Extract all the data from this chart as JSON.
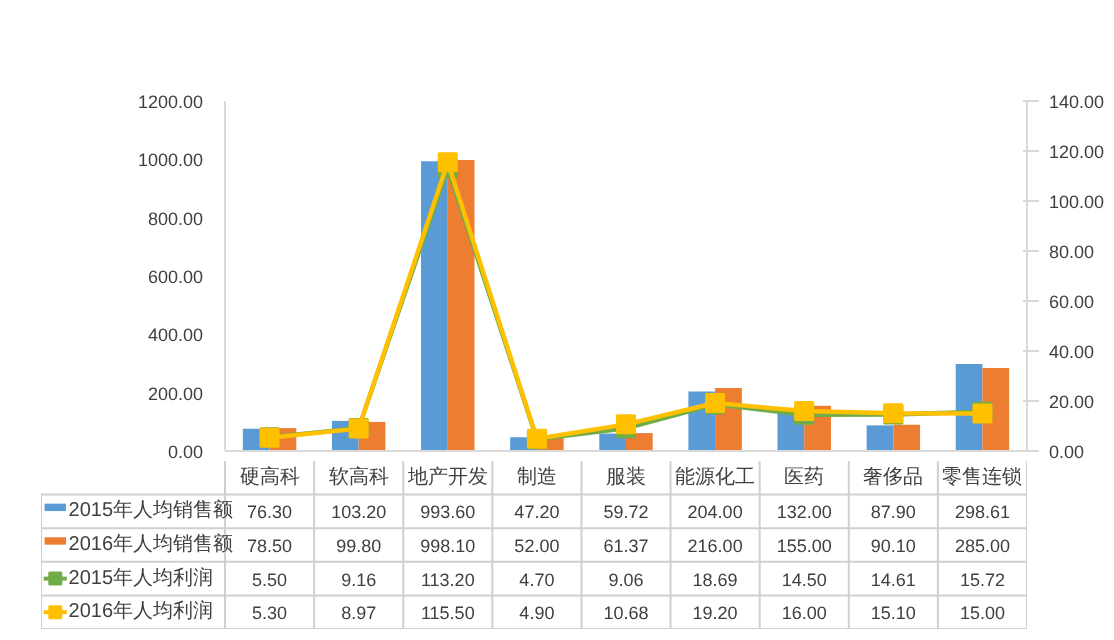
{
  "chart_data": {
    "type": "bar",
    "categories": [
      "硬高科",
      "软高科",
      "地产开发",
      "制造",
      "服装",
      "能源化工",
      "医药",
      "奢侈品",
      "零售连锁"
    ],
    "series": [
      {
        "name": "2015年人均销售额",
        "color": "#5b9bd5",
        "values": [
          76.3,
          103.2,
          993.6,
          47.2,
          59.72,
          204.0,
          132.0,
          87.9,
          298.61
        ],
        "value_labels": [
          "76.30",
          "103.20",
          "993.60",
          "47.20",
          "59.72",
          "204.00",
          "132.00",
          "87.90",
          "298.61"
        ]
      },
      {
        "name": "2016年人均销售额",
        "color": "#ed7d31",
        "values": [
          78.5,
          99.8,
          998.1,
          52.0,
          61.37,
          216.0,
          155.0,
          90.1,
          285.0
        ],
        "value_labels": [
          "78.50",
          "99.80",
          "998.10",
          "52.00",
          "61.37",
          "216.00",
          "155.00",
          "90.10",
          "285.00"
        ]
      },
      {
        "name": "2015年人均利润",
        "type": "line",
        "axis": "y2",
        "color": "#70ad47",
        "values": [
          5.5,
          9.16,
          113.2,
          4.7,
          9.06,
          18.69,
          14.5,
          14.61,
          15.72
        ],
        "value_labels": [
          "5.50",
          "9.16",
          "113.20",
          "4.70",
          "9.06",
          "18.69",
          "14.50",
          "14.61",
          "15.72"
        ]
      },
      {
        "name": "2016年人均利润",
        "type": "line",
        "axis": "y2",
        "color": "#ffc000",
        "values": [
          5.3,
          8.97,
          115.5,
          4.9,
          10.68,
          19.2,
          16.0,
          15.1,
          15.0
        ],
        "value_labels": [
          "5.30",
          "8.97",
          "115.50",
          "4.90",
          "10.68",
          "19.20",
          "16.00",
          "15.10",
          "15.00"
        ]
      }
    ],
    "ylim": [
      0,
      1200
    ],
    "yticks": [
      {
        "value": 0,
        "label": "0.00"
      },
      {
        "value": 200,
        "label": "200.00"
      },
      {
        "value": 400,
        "label": "400.00"
      },
      {
        "value": 600,
        "label": "600.00"
      },
      {
        "value": 800,
        "label": "800.00"
      },
      {
        "value": 1000,
        "label": "1000.00"
      },
      {
        "value": 1200,
        "label": "1200.00"
      }
    ],
    "y2lim": [
      0,
      140
    ],
    "y2ticks": [
      {
        "value": 0,
        "label": "0.00"
      },
      {
        "value": 20,
        "label": "20.00"
      },
      {
        "value": 40,
        "label": "40.00"
      },
      {
        "value": 60,
        "label": "60.00"
      },
      {
        "value": 80,
        "label": "80.00"
      },
      {
        "value": 100,
        "label": "100.00"
      },
      {
        "value": 120,
        "label": "120.00"
      },
      {
        "value": 140,
        "label": "140.00"
      }
    ],
    "marker": "square",
    "grid": false,
    "legend": "bottom"
  }
}
